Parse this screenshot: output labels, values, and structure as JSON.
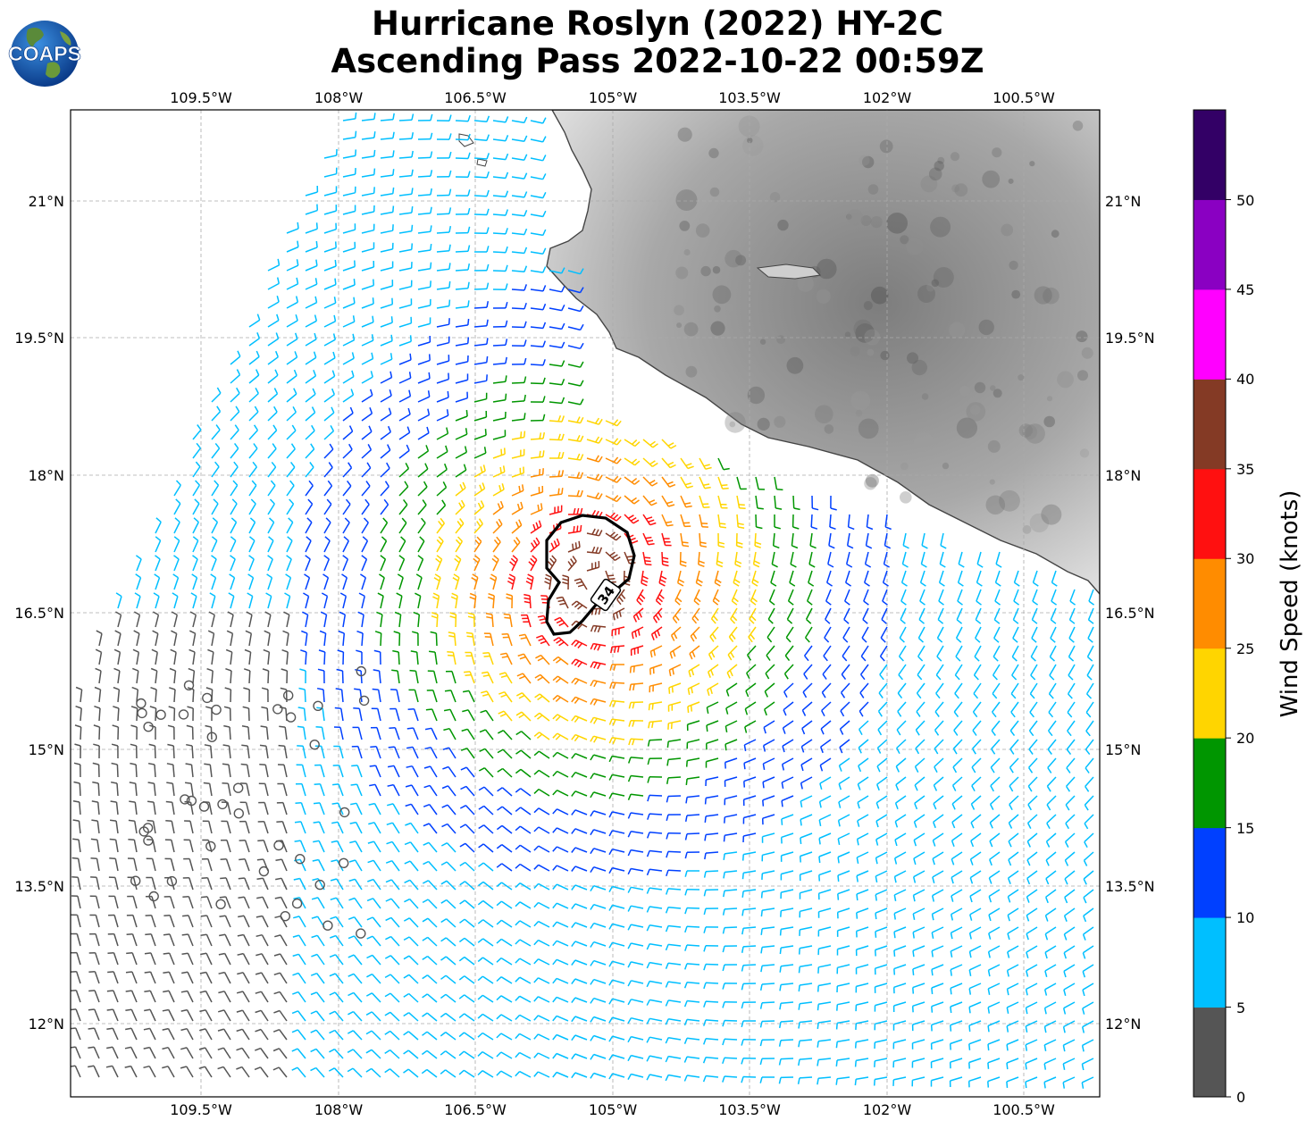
{
  "title": {
    "line1": "Hurricane Roslyn (2022) HY-2C",
    "line2": "Ascending Pass 2022-10-22 00:59Z"
  },
  "logo": {
    "text": "COAPS"
  },
  "map": {
    "lon_ticks": [
      "109.5°W",
      "108°W",
      "106.5°W",
      "105°W",
      "103.5°W",
      "102°W",
      "100.5°W"
    ],
    "lat_ticks": [
      "21°N",
      "19.5°N",
      "18°N",
      "16.5°N",
      "15°N",
      "13.5°N",
      "12°N"
    ],
    "contour_label": "34",
    "colors": {
      "land": "#9a9a9a",
      "coast": "#444444",
      "contour": "#000000"
    }
  },
  "colorbar": {
    "label": "Wind Speed (knots)",
    "ticks": [
      "0",
      "5",
      "10",
      "15",
      "20",
      "25",
      "30",
      "35",
      "40",
      "45",
      "50"
    ],
    "colors": [
      "#555555",
      "#00bfff",
      "#0040ff",
      "#009600",
      "#ffd500",
      "#ff8c00",
      "#ff1010",
      "#843a25",
      "#ff00ff",
      "#8a00c2",
      "#330066"
    ]
  }
}
